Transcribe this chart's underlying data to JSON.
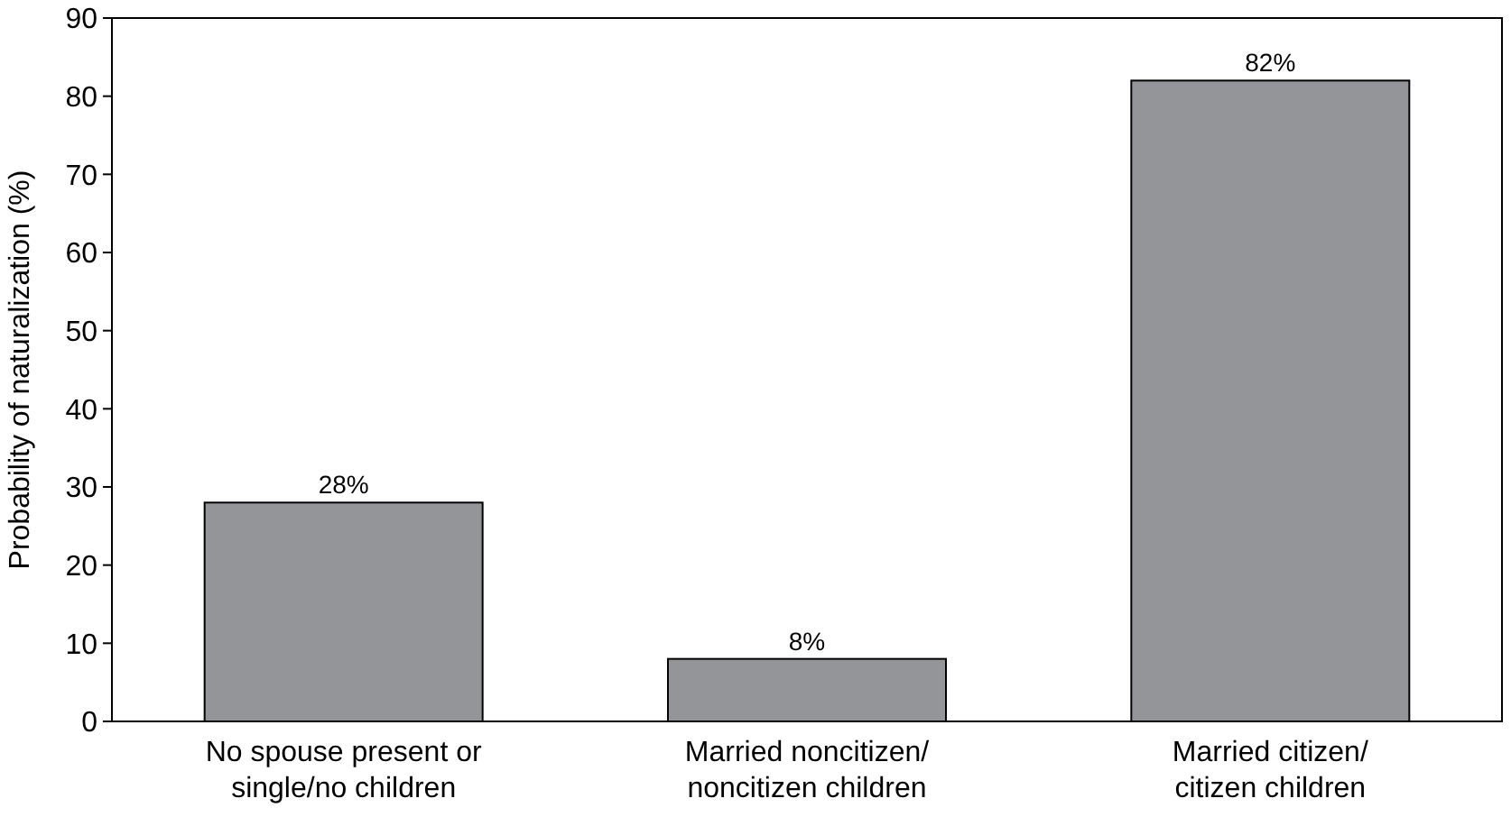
{
  "chart_data": {
    "type": "bar",
    "ylabel": "Probability of naturalization (%)",
    "categories": [
      "No spouse present or single/no children",
      "Married noncitizen/ noncitizen children",
      "Married citizen/ citizen children"
    ],
    "values": [
      28,
      8,
      82
    ],
    "value_labels": [
      "28%",
      "8%",
      "82%"
    ],
    "color": "#949599",
    "ylim": [
      0,
      90
    ],
    "yticks": [
      0,
      10,
      20,
      30,
      40,
      50,
      60,
      70,
      80,
      90
    ],
    "grid": false
  }
}
